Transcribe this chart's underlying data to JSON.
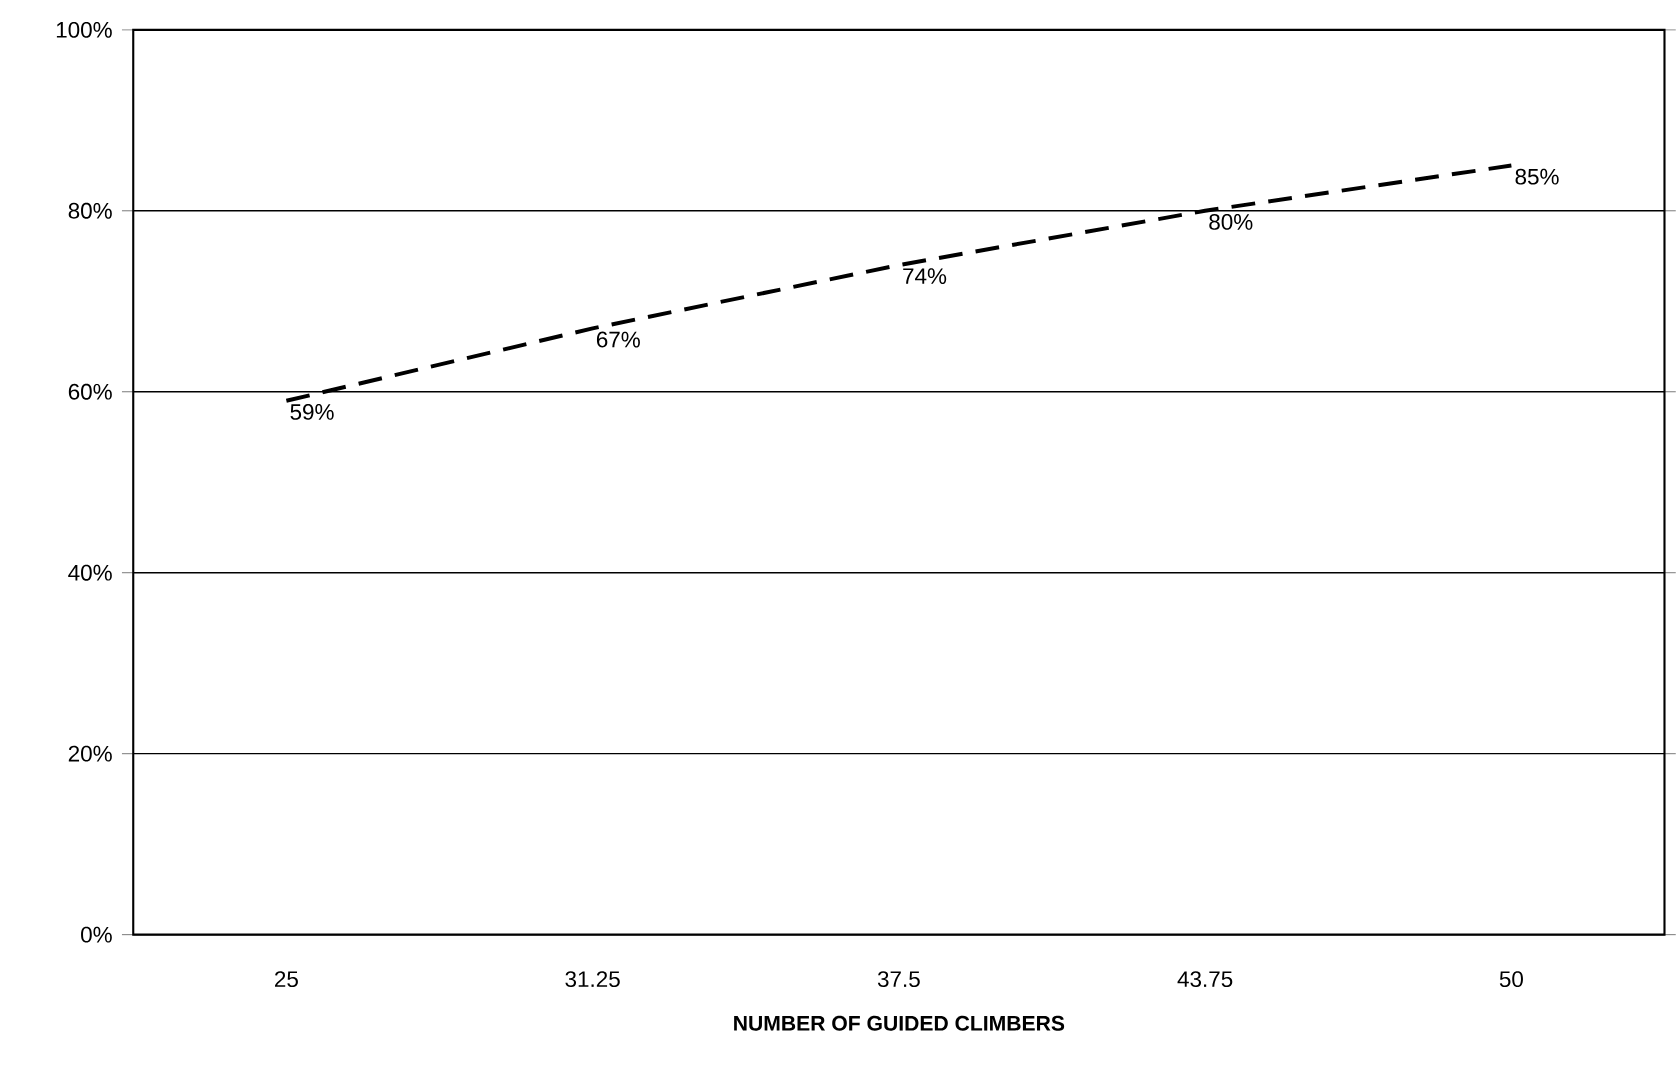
{
  "chart_data": {
    "type": "line",
    "xlabel": "NUMBER OF GUIDED CLIMBERS",
    "categories": [
      "25",
      "31.25",
      "37.5",
      "43.75",
      "50"
    ],
    "series": [
      {
        "color": "#000000",
        "values": [
          59,
          67,
          74,
          80,
          85
        ],
        "value_labels": [
          "59%",
          "67%",
          "74%",
          "80%",
          "85%"
        ]
      }
    ],
    "ylim": [
      0,
      100
    ],
    "yticks": [
      {
        "value": 0,
        "label": "0%"
      },
      {
        "value": 20,
        "label": "20%"
      },
      {
        "value": 40,
        "label": "40%"
      },
      {
        "value": 60,
        "label": "60%"
      },
      {
        "value": 80,
        "label": "80%"
      },
      {
        "value": 100,
        "label": "100%"
      }
    ],
    "grid": "y",
    "marker": "none",
    "line_style": "dashed"
  }
}
